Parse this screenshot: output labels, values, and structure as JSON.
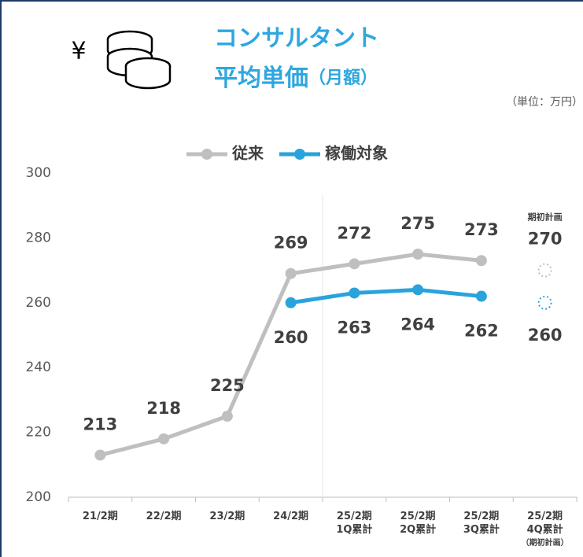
{
  "chart_data": {
    "type": "line",
    "icon_text": "¥",
    "title": [
      "コンサルタント",
      "平均単価"
    ],
    "title_suffix": "（月額）",
    "unit": "（単位：万円）",
    "categories": [
      "21/2期",
      "22/2期",
      "23/2期",
      "24/2期",
      "25/2期\n1Q累計",
      "25/2期\n2Q累計",
      "25/2期\n3Q累計",
      "25/2期\n4Q累計\n（期初計画）"
    ],
    "series": [
      {
        "name": "従来",
        "color": "#bfbfbf",
        "values": [
          213,
          218,
          225,
          269,
          272,
          275,
          273,
          null
        ],
        "plan_value": 270
      },
      {
        "name": "稼働対象",
        "color": "#29a3dc",
        "values": [
          null,
          null,
          null,
          260,
          263,
          264,
          262,
          null
        ],
        "plan_value": 260
      }
    ],
    "plan_label": "期初計画",
    "ylim": [
      200,
      300
    ],
    "yticks": [
      200,
      220,
      240,
      260,
      280,
      300
    ],
    "grid": false,
    "legend": "top"
  }
}
